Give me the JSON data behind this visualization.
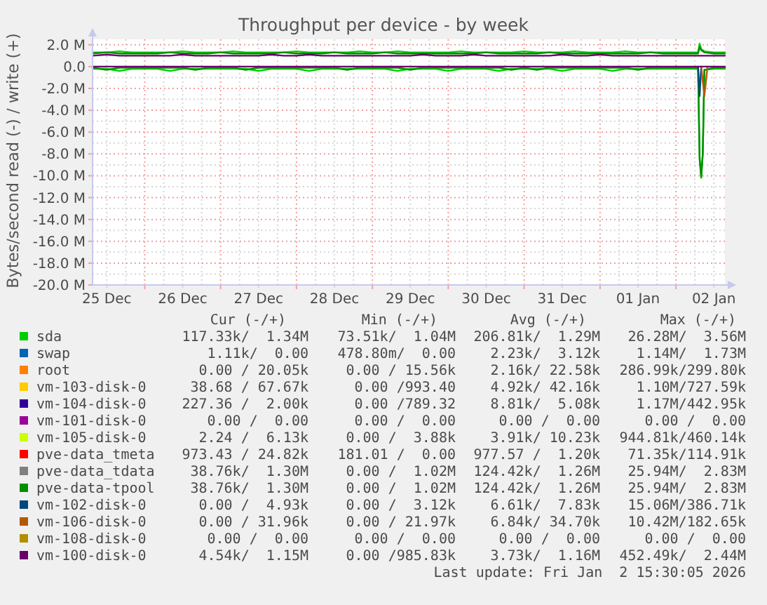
{
  "chart_data": {
    "type": "line",
    "title": "Throughput per device - by week",
    "ylabel": "Bytes/second read (-) / write (+)",
    "x": [
      "2025-12-25T07:30",
      "2025-12-25T12:00",
      "2025-12-25T16:00",
      "2025-12-25T20:00",
      "2025-12-26T00:00",
      "2025-12-26T04:00",
      "2025-12-26T08:00",
      "2025-12-26T12:00",
      "2025-12-26T16:00",
      "2025-12-26T20:00",
      "2025-12-27T00:00",
      "2025-12-27T04:00",
      "2025-12-27T08:00",
      "2025-12-27T12:00",
      "2025-12-27T16:00",
      "2025-12-27T20:00",
      "2025-12-28T00:00",
      "2025-12-28T04:00",
      "2025-12-28T08:00",
      "2025-12-28T12:00",
      "2025-12-28T16:00",
      "2025-12-28T20:00",
      "2025-12-29T00:00",
      "2025-12-29T04:00",
      "2025-12-29T08:00",
      "2025-12-29T12:00",
      "2025-12-29T16:00",
      "2025-12-29T20:00",
      "2025-12-30T00:00",
      "2025-12-30T04:00",
      "2025-12-30T08:00",
      "2025-12-30T12:00",
      "2025-12-30T16:00",
      "2025-12-30T20:00",
      "2025-12-31T00:00",
      "2025-12-31T04:00",
      "2025-12-31T08:00",
      "2025-12-31T12:00",
      "2025-12-31T16:00",
      "2025-12-31T20:00",
      "2026-01-01T00:00",
      "2026-01-01T04:00",
      "2026-01-01T08:00",
      "2026-01-01T12:00",
      "2026-01-01T16:00",
      "2026-01-01T20:00",
      "2026-01-02T00:00",
      "2026-01-02T04:00",
      "2026-01-02T07:00",
      "2026-01-02T07:30",
      "2026-01-02T08:00",
      "2026-01-02T08:30",
      "2026-01-02T09:00",
      "2026-01-02T12:00",
      "2026-01-02T15:30"
    ],
    "series": [
      {
        "name": "sda",
        "color": "#00cc00",
        "values": [
          1.3,
          1.3,
          1.4,
          1.3,
          1.3,
          1.3,
          1.3,
          1.4,
          1.3,
          1.3,
          1.3,
          1.4,
          1.3,
          1.3,
          1.3,
          1.3,
          1.4,
          1.3,
          1.3,
          1.3,
          1.3,
          1.4,
          1.3,
          1.3,
          1.4,
          1.3,
          1.3,
          1.3,
          1.3,
          1.4,
          1.3,
          1.3,
          1.3,
          1.3,
          1.4,
          1.3,
          1.3,
          1.3,
          1.4,
          1.3,
          1.3,
          1.3,
          1.4,
          1.3,
          1.3,
          1.3,
          1.3,
          1.3,
          1.3,
          2.1,
          1.6,
          1.5,
          1.4,
          1.3,
          1.3
        ]
      },
      {
        "color": "#00cc00",
        "values": [
          -0.2,
          -0.2,
          -0.4,
          -0.2,
          -0.2,
          -0.2,
          -0.4,
          -0.2,
          -0.2,
          -0.2,
          -0.2,
          -0.2,
          -0.2,
          -0.4,
          -0.2,
          -0.2,
          -0.2,
          -0.4,
          -0.2,
          -0.2,
          -0.2,
          -0.2,
          -0.2,
          -0.2,
          -0.4,
          -0.2,
          -0.2,
          -0.2,
          -0.4,
          -0.2,
          -0.2,
          -0.2,
          -0.4,
          -0.2,
          -0.2,
          -0.2,
          -0.2,
          -0.4,
          -0.2,
          -0.2,
          -0.2,
          -0.4,
          -0.2,
          -0.2,
          -0.2,
          -0.2,
          -0.2,
          -0.2,
          -0.2,
          -8.5,
          -10.2,
          -8.0,
          -0.3,
          -0.2,
          -0.2
        ]
      },
      {
        "name": "swap",
        "color": "#0066b3",
        "values": [
          null,
          null,
          null,
          null,
          null,
          null,
          null,
          null,
          null,
          null,
          null,
          null,
          null,
          null,
          null,
          null,
          null,
          null,
          null,
          null,
          null,
          null,
          null,
          null,
          null,
          null,
          null,
          null,
          null,
          null,
          null,
          null,
          null,
          null,
          null,
          null,
          null,
          null,
          null,
          null,
          null,
          null,
          null,
          null,
          null,
          null,
          null,
          null,
          null,
          null,
          null,
          null,
          null,
          null,
          null
        ]
      },
      {
        "name": "root",
        "color": "#ff8000",
        "values": [
          null,
          null,
          null,
          null,
          null,
          null,
          null,
          null,
          null,
          null,
          null,
          null,
          null,
          null,
          null,
          null,
          null,
          null,
          null,
          null,
          null,
          null,
          null,
          null,
          null,
          null,
          null,
          null,
          null,
          null,
          null,
          null,
          null,
          null,
          null,
          null,
          null,
          null,
          null,
          null,
          null,
          null,
          null,
          null,
          null,
          null,
          null,
          null,
          null,
          null,
          null,
          null,
          null,
          null,
          null
        ]
      },
      {
        "name": "vm-103-disk-0",
        "color": "#ffcc00",
        "values": [
          null,
          null,
          null,
          null,
          null,
          null,
          null,
          null,
          null,
          null,
          null,
          null,
          null,
          null,
          null,
          null,
          null,
          null,
          null,
          null,
          null,
          null,
          null,
          null,
          null,
          null,
          null,
          null,
          null,
          null,
          null,
          null,
          null,
          null,
          null,
          null,
          null,
          null,
          null,
          null,
          null,
          null,
          null,
          null,
          null,
          null,
          null,
          null,
          null,
          null,
          null,
          null,
          null,
          null,
          null
        ]
      },
      {
        "name": "vm-104-disk-0",
        "color": "#330099",
        "values": [
          null,
          null,
          null,
          null,
          null,
          null,
          null,
          null,
          null,
          null,
          null,
          null,
          null,
          null,
          null,
          null,
          null,
          null,
          null,
          null,
          null,
          null,
          null,
          null,
          null,
          null,
          null,
          null,
          null,
          null,
          null,
          null,
          null,
          null,
          null,
          null,
          null,
          null,
          null,
          null,
          null,
          null,
          null,
          null,
          null,
          null,
          null,
          null,
          null,
          null,
          null,
          null,
          null,
          null,
          null
        ]
      },
      {
        "name": "vm-101-disk-0",
        "color": "#990099",
        "values": [
          null,
          null,
          null,
          null,
          null,
          null,
          null,
          null,
          null,
          null,
          null,
          null,
          null,
          null,
          null,
          null,
          null,
          null,
          null,
          null,
          null,
          null,
          null,
          null,
          null,
          null,
          null,
          null,
          null,
          null,
          null,
          null,
          null,
          null,
          null,
          null,
          null,
          null,
          null,
          null,
          null,
          null,
          null,
          null,
          null,
          null,
          null,
          null,
          null,
          null,
          null,
          null,
          null,
          null,
          null
        ]
      },
      {
        "name": "vm-105-disk-0",
        "color": "#ccff00",
        "values": [
          null,
          null,
          null,
          null,
          null,
          null,
          null,
          null,
          null,
          null,
          null,
          null,
          null,
          null,
          null,
          null,
          null,
          null,
          null,
          null,
          null,
          null,
          null,
          null,
          null,
          null,
          null,
          null,
          null,
          null,
          null,
          null,
          null,
          null,
          null,
          null,
          null,
          null,
          null,
          null,
          null,
          null,
          null,
          null,
          null,
          null,
          null,
          null,
          null,
          null,
          null,
          null,
          null,
          null,
          null
        ]
      },
      {
        "name": "pve-data_tmeta",
        "color": "#ff0000",
        "values": [
          null,
          null,
          null,
          null,
          null,
          null,
          null,
          null,
          null,
          null,
          null,
          null,
          null,
          null,
          null,
          null,
          null,
          null,
          null,
          null,
          null,
          null,
          null,
          null,
          null,
          null,
          null,
          null,
          null,
          null,
          null,
          null,
          null,
          null,
          null,
          null,
          null,
          null,
          null,
          null,
          null,
          null,
          null,
          null,
          null,
          null,
          null,
          null,
          null,
          null,
          null,
          null,
          null,
          null,
          null
        ]
      },
      {
        "name": "pve-data_tdata",
        "color": "#808080",
        "values": [
          null,
          null,
          null,
          null,
          null,
          null,
          null,
          null,
          null,
          null,
          null,
          null,
          null,
          null,
          null,
          null,
          null,
          null,
          null,
          null,
          null,
          null,
          null,
          null,
          null,
          null,
          null,
          null,
          null,
          null,
          null,
          null,
          null,
          null,
          null,
          null,
          null,
          null,
          null,
          null,
          null,
          null,
          null,
          null,
          null,
          null,
          null,
          null,
          null,
          null,
          null,
          null,
          null,
          null,
          null
        ]
      },
      {
        "name": "pve-data-tpool",
        "color": "#008f00",
        "values": [
          1.2,
          1.3,
          1.2,
          1.2,
          1.2,
          1.2,
          1.3,
          1.2,
          1.2,
          1.2,
          1.3,
          1.2,
          1.2,
          1.2,
          1.2,
          1.3,
          1.2,
          1.2,
          1.2,
          1.3,
          1.2,
          1.2,
          1.2,
          1.3,
          1.2,
          1.2,
          1.2,
          1.2,
          1.2,
          1.2,
          1.2,
          1.3,
          1.2,
          1.2,
          1.2,
          1.2,
          1.3,
          1.2,
          1.2,
          1.2,
          1.2,
          1.2,
          1.2,
          1.2,
          1.3,
          1.2,
          1.2,
          1.2,
          1.2,
          1.8,
          1.5,
          1.4,
          1.3,
          1.2,
          1.2
        ]
      },
      {
        "color": "#008f00",
        "values": [
          -0.1,
          -0.3,
          -0.1,
          -0.1,
          -0.1,
          -0.1,
          -0.1,
          -0.1,
          -0.3,
          -0.1,
          -0.1,
          -0.1,
          -0.3,
          -0.1,
          -0.1,
          -0.1,
          -0.1,
          -0.1,
          -0.1,
          -0.1,
          -0.3,
          -0.1,
          -0.1,
          -0.1,
          -0.1,
          -0.3,
          -0.1,
          -0.1,
          -0.1,
          -0.1,
          -0.1,
          -0.1,
          -0.1,
          -0.3,
          -0.1,
          -0.3,
          -0.1,
          -0.1,
          -0.1,
          -0.1,
          -0.1,
          -0.1,
          -0.1,
          -0.3,
          -0.1,
          -0.1,
          -0.1,
          -0.1,
          -0.1,
          -8.4,
          -10.1,
          -7.9,
          -0.3,
          -0.1,
          -0.1
        ]
      },
      {
        "name": "vm-102-disk-0",
        "color": "#00487d",
        "values": [
          null,
          null,
          null,
          null,
          null,
          null,
          null,
          null,
          null,
          null,
          null,
          null,
          null,
          null,
          null,
          null,
          null,
          null,
          null,
          null,
          null,
          null,
          null,
          null,
          null,
          null,
          null,
          null,
          null,
          null,
          null,
          null,
          null,
          null,
          null,
          null,
          null,
          null,
          null,
          null,
          null,
          null,
          null,
          null,
          null,
          null,
          null,
          null,
          null,
          null,
          null,
          null,
          null,
          null,
          null
        ]
      },
      {
        "color": "#00487d",
        "x": [
          "2026-01-02T07:00",
          "2026-01-02T07:30",
          "2026-01-02T08:00"
        ],
        "values": [
          0,
          -2.7,
          0
        ]
      },
      {
        "name": "vm-106-disk-0",
        "color": "#b35a00",
        "values": [
          null,
          null,
          null,
          null,
          null,
          null,
          null,
          null,
          null,
          null,
          null,
          null,
          null,
          null,
          null,
          null,
          null,
          null,
          null,
          null,
          null,
          null,
          null,
          null,
          null,
          null,
          null,
          null,
          null,
          null,
          null,
          null,
          null,
          null,
          null,
          null,
          null,
          null,
          null,
          null,
          null,
          null,
          null,
          null,
          null,
          null,
          null,
          null,
          null,
          null,
          null,
          null,
          null,
          null,
          null
        ]
      },
      {
        "color": "#b35a00",
        "x": [
          "2026-01-02T08:00",
          "2026-01-02T09:00",
          "2026-01-02T10:00"
        ],
        "values": [
          0,
          -2.7,
          0
        ]
      },
      {
        "name": "vm-108-disk-0",
        "color": "#b38f00",
        "values": [
          null,
          null,
          null,
          null,
          null,
          null,
          null,
          null,
          null,
          null,
          null,
          null,
          null,
          null,
          null,
          null,
          null,
          null,
          null,
          null,
          null,
          null,
          null,
          null,
          null,
          null,
          null,
          null,
          null,
          null,
          null,
          null,
          null,
          null,
          null,
          null,
          null,
          null,
          null,
          null,
          null,
          null,
          null,
          null,
          null,
          null,
          null,
          null,
          null,
          null,
          null,
          null,
          null,
          null,
          null
        ]
      },
      {
        "name": "vm-100-disk-0",
        "color": "#6b006b",
        "values": [
          1.0,
          1.1,
          1.0,
          1.0,
          1.0,
          1.0,
          1.0,
          1.1,
          1.0,
          1.0,
          1.0,
          1.0,
          1.0,
          1.0,
          1.1,
          1.0,
          1.0,
          1.1,
          1.0,
          1.0,
          1.0,
          1.0,
          1.0,
          1.0,
          1.0,
          1.0,
          1.1,
          1.0,
          1.0,
          1.0,
          1.1,
          1.0,
          1.0,
          1.0,
          1.0,
          1.0,
          1.0,
          1.1,
          1.0,
          1.0,
          1.1,
          1.0,
          1.0,
          1.0,
          1.0,
          1.0,
          1.0,
          1.0,
          1.0,
          1.0,
          1.0,
          1.0,
          1.0,
          1.0,
          1.0
        ]
      },
      {
        "color": "#6b006b",
        "x": [
          "2025-12-25T07:30",
          "2026-01-02T15:30"
        ],
        "values": [
          0,
          0
        ]
      }
    ],
    "xlim": [
      "2025-12-25T07:30",
      "2026-01-02T15:30"
    ],
    "xticks": [
      {
        "value": "2025-12-25T12:00",
        "label": "25 Dec"
      },
      {
        "value": "2025-12-26T00:00",
        "label": null
      },
      {
        "value": "2025-12-26T12:00",
        "label": "26 Dec"
      },
      {
        "value": "2025-12-27T00:00",
        "label": null
      },
      {
        "value": "2025-12-27T12:00",
        "label": "27 Dec"
      },
      {
        "value": "2025-12-28T00:00",
        "label": null
      },
      {
        "value": "2025-12-28T12:00",
        "label": "28 Dec"
      },
      {
        "value": "2025-12-29T00:00",
        "label": null
      },
      {
        "value": "2025-12-29T12:00",
        "label": "29 Dec"
      },
      {
        "value": "2025-12-30T00:00",
        "label": null
      },
      {
        "value": "2025-12-30T12:00",
        "label": "30 Dec"
      },
      {
        "value": "2025-12-31T00:00",
        "label": null
      },
      {
        "value": "2025-12-31T12:00",
        "label": "31 Dec"
      },
      {
        "value": "2026-01-01T00:00",
        "label": null
      },
      {
        "value": "2026-01-01T12:00",
        "label": "01 Jan"
      },
      {
        "value": "2026-01-02T00:00",
        "label": null
      },
      {
        "value": "2026-01-02T12:00",
        "label": "02 Jan"
      }
    ],
    "ylim": [
      -20,
      2.5
    ],
    "yticks": [
      {
        "value": 2,
        "label": "2.0 M"
      },
      {
        "value": 0,
        "label": "0.0"
      },
      {
        "value": -2,
        "label": "-2.0 M"
      },
      {
        "value": -4,
        "label": "-4.0 M"
      },
      {
        "value": -6,
        "label": "-6.0 M"
      },
      {
        "value": -8,
        "label": "-8.0 M"
      },
      {
        "value": -10,
        "label": "-10.0 M"
      },
      {
        "value": -12,
        "label": "-12.0 M"
      },
      {
        "value": -14,
        "label": "-14.0 M"
      },
      {
        "value": -16,
        "label": "-16.0 M"
      },
      {
        "value": -18,
        "label": "-18.0 M"
      },
      {
        "value": -20,
        "label": "-20.0 M"
      }
    ],
    "grid": true,
    "legend": "bottom",
    "annotations": [
      "Cur (-/+)",
      "Min (-/+)",
      "Avg (-/+)",
      "Max (-/+)",
      "117.33k/  1.34M",
      "73.51k/  1.04M",
      "206.81k/  1.29M",
      "26.28M/  3.56M",
      "1.11k/  0.00",
      "478.80m/  0.00",
      "2.23k/  3.12k",
      "1.14M/  1.73M",
      "0.00 / 20.05k",
      "0.00 / 15.56k",
      "2.16k/ 22.58k",
      "286.99k/299.80k",
      "38.68 / 67.67k",
      "0.00 /993.40",
      "4.92k/ 42.16k",
      "1.10M/727.59k",
      "227.36 /  2.00k",
      "0.00 /789.32",
      "8.81k/  5.08k",
      "1.17M/442.95k",
      "0.00 /  0.00",
      "0.00 /  0.00",
      "0.00 /  0.00",
      "0.00 /  0.00",
      "2.24 /  6.13k",
      "0.00 /  3.88k",
      "3.91k/ 10.23k",
      "944.81k/460.14k",
      "973.43 / 24.82k",
      "181.01 /  0.00",
      "977.57 /  1.20k",
      "71.35k/114.91k",
      "38.76k/  1.30M",
      "0.00 /  1.02M",
      "124.42k/  1.26M",
      "25.94M/  2.83M",
      "38.76k/  1.30M",
      "0.00 /  1.02M",
      "124.42k/  1.26M",
      "25.94M/  2.83M",
      "0.00 /  4.93k",
      "0.00 /  3.12k",
      "6.61k/  7.83k",
      "15.06M/386.71k",
      "0.00 / 31.96k",
      "0.00 / 21.97k",
      "6.84k/ 34.70k",
      "10.42M/182.65k",
      "0.00 /  0.00",
      "0.00 /  0.00",
      "0.00 /  0.00",
      "0.00 /  0.00",
      "4.54k/  1.15M",
      "0.00 /985.83k",
      "3.73k/  1.16M",
      "452.49k/  2.44M",
      "Last update: Fri Jan  2 15:30:05 2026"
    ]
  }
}
